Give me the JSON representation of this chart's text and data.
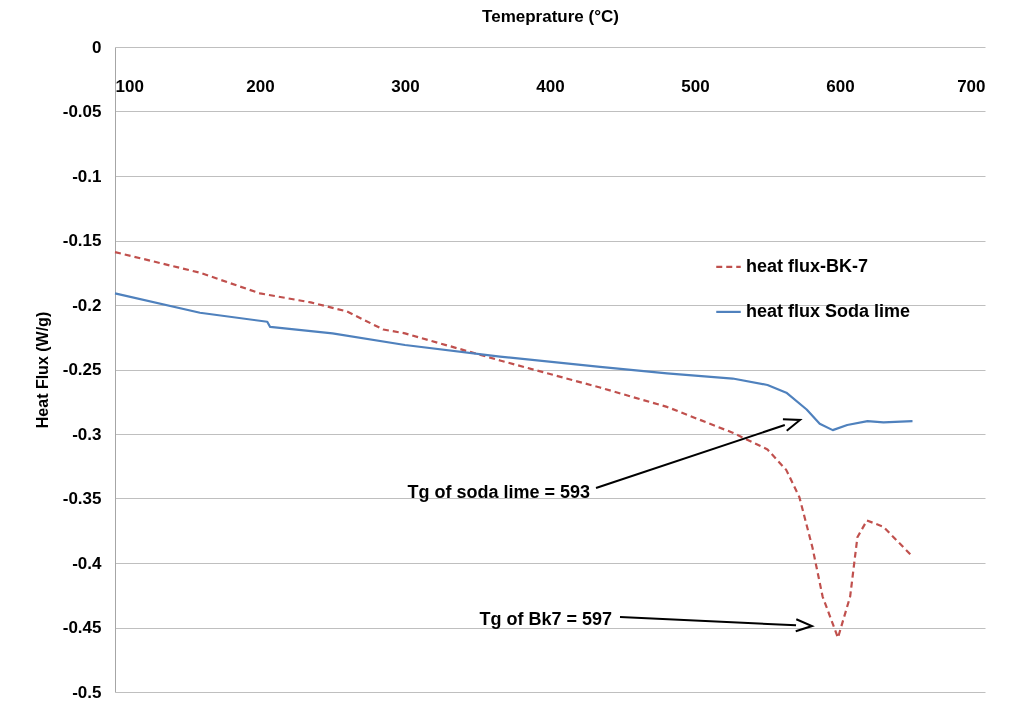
{
  "chart_data": {
    "type": "line",
    "xlabel": "Temeprature (°C)",
    "ylabel": "Heat Flux (W/g)",
    "xlim": [
      100,
      700
    ],
    "xticks": [
      100,
      200,
      300,
      400,
      500,
      600,
      700
    ],
    "ylim": [
      -0.5,
      0
    ],
    "yticks": [
      0,
      -0.05,
      -0.1,
      -0.15,
      -0.2,
      -0.25,
      -0.3,
      -0.35,
      -0.4,
      -0.45,
      -0.5
    ],
    "grid": "y",
    "legend": "right",
    "marker": "none",
    "series": [
      {
        "name": "heat flux-BK-7",
        "color": "#c0504d",
        "line_style": "dashed",
        "x": [
          100,
          158.6,
          200,
          235,
          260,
          285,
          300,
          365.5,
          434.5,
          480.7,
          526,
          550,
          563,
          572,
          581,
          588,
          598.6,
          607,
          612,
          618.6,
          630,
          650
        ],
        "values": [
          -0.159,
          -0.175,
          -0.191,
          -0.198,
          -0.205,
          -0.219,
          -0.222,
          -0.243,
          -0.264,
          -0.279,
          -0.299,
          -0.312,
          -0.328,
          -0.349,
          -0.388,
          -0.426,
          -0.458,
          -0.426,
          -0.38,
          -0.367,
          -0.372,
          -0.395
        ]
      },
      {
        "name": "heat flux Soda lime",
        "color": "#4f81bd",
        "line_style": "solid",
        "x": [
          100,
          158.6,
          205,
          207,
          250,
          300,
          365.5,
          434.5,
          480.7,
          526,
          550,
          563,
          577,
          586,
          595,
          605,
          619,
          630,
          650
        ],
        "values": [
          -0.191,
          -0.206,
          -0.213,
          -0.217,
          -0.222,
          -0.231,
          -0.24,
          -0.248,
          -0.253,
          -0.257,
          -0.262,
          -0.268,
          -0.281,
          -0.292,
          -0.297,
          -0.293,
          -0.29,
          -0.291,
          -0.29
        ]
      }
    ],
    "annotations": [
      "Tg of soda lime = 593",
      "Tg of Bk7 = 597"
    ]
  }
}
